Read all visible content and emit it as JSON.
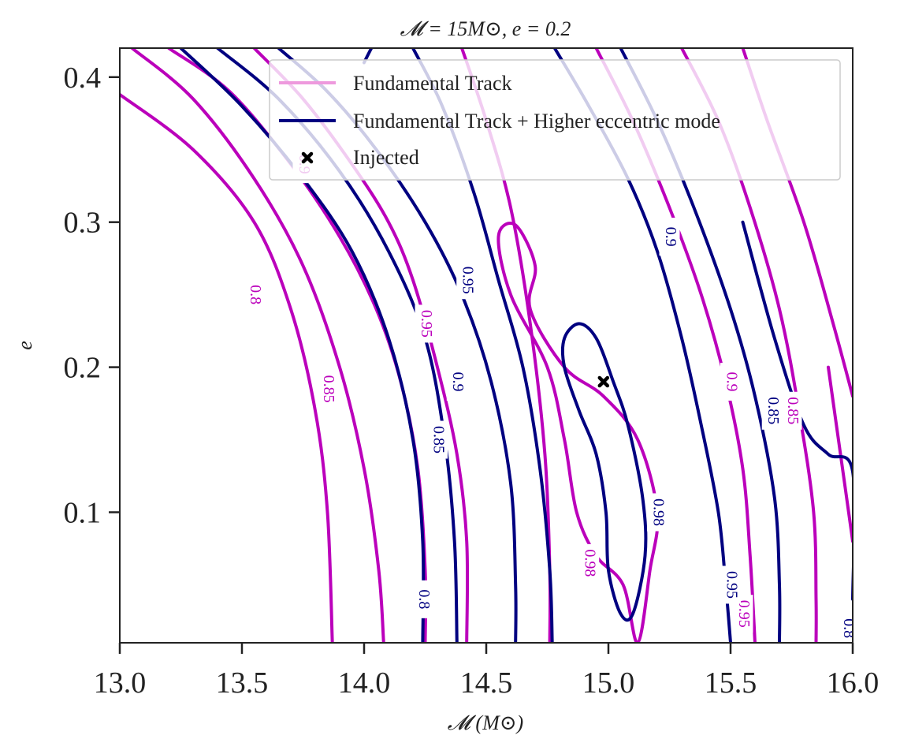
{
  "chart_data": {
    "type": "contour",
    "title": "𝓜 = 15M⊙, e = 0.2",
    "xlabel": "𝓜 (M⊙)",
    "ylabel": "e",
    "xlim": [
      13.0,
      16.0
    ],
    "ylim": [
      0.01,
      0.42
    ],
    "xticks": [
      13.0,
      13.5,
      14.0,
      14.5,
      15.0,
      15.5,
      16.0
    ],
    "xtick_labels": [
      "13.0",
      "13.5",
      "14.0",
      "14.5",
      "15.0",
      "15.5",
      "16.0"
    ],
    "yticks": [
      0.1,
      0.2,
      0.3,
      0.4
    ],
    "ytick_labels": [
      "0.1",
      "0.2",
      "0.3",
      "0.4"
    ],
    "legend_position": "top-right",
    "legend": [
      {
        "label": "Fundamental Track",
        "color": "#ee99dd"
      },
      {
        "label": "Fundamental Track + Higher eccentric mode",
        "color": "#000080"
      },
      {
        "label": "Injected",
        "marker": "x-icon",
        "color": "#000000"
      }
    ],
    "colors": {
      "fundamental": "#bb00bb",
      "higher_mode": "#000080",
      "injected": "#000000"
    },
    "injected_point": {
      "x": 14.98,
      "y": 0.19
    },
    "series": [
      {
        "name": "Fundamental Track",
        "color_key": "fundamental",
        "contours": [
          {
            "level": 0.8,
            "points": [
              [
                13.0,
                0.388
              ],
              [
                13.3,
                0.35
              ],
              [
                13.55,
                0.3
              ],
              [
                13.7,
                0.24
              ],
              [
                13.8,
                0.17
              ],
              [
                13.85,
                0.1
              ],
              [
                13.87,
                0.01
              ]
            ]
          },
          {
            "level": 0.85,
            "points": [
              [
                13.05,
                0.42
              ],
              [
                13.3,
                0.385
              ],
              [
                13.55,
                0.33
              ],
              [
                13.75,
                0.27
              ],
              [
                13.9,
                0.2
              ],
              [
                14.0,
                0.13
              ],
              [
                14.06,
                0.06
              ],
              [
                14.08,
                0.01
              ]
            ]
          },
          {
            "level": 0.9,
            "points": [
              [
                13.2,
                0.42
              ],
              [
                13.45,
                0.39
              ],
              [
                13.7,
                0.34
              ],
              [
                13.9,
                0.29
              ],
              [
                14.05,
                0.24
              ],
              [
                14.15,
                0.19
              ],
              [
                14.22,
                0.13
              ],
              [
                14.25,
                0.06
              ],
              [
                14.25,
                0.01
              ]
            ]
          },
          {
            "level": 0.95,
            "points": [
              [
                13.55,
                0.42
              ],
              [
                13.75,
                0.385
              ],
              [
                13.95,
                0.34
              ],
              [
                14.1,
                0.3
              ],
              [
                14.2,
                0.26
              ],
              [
                14.3,
                0.2
              ],
              [
                14.38,
                0.14
              ],
              [
                14.42,
                0.08
              ],
              [
                14.42,
                0.01
              ]
            ]
          },
          {
            "level": 0.95,
            "points": [
              [
                14.4,
                0.42
              ],
              [
                14.5,
                0.37
              ],
              [
                14.6,
                0.31
              ],
              [
                14.68,
                0.23
              ],
              [
                14.74,
                0.14
              ],
              [
                14.76,
                0.06
              ],
              [
                14.76,
                0.01
              ]
            ]
          },
          {
            "level": 0.98,
            "closed": true,
            "points": [
              [
                14.55,
                0.29
              ],
              [
                14.62,
                0.298
              ],
              [
                14.7,
                0.27
              ],
              [
                14.68,
                0.24
              ],
              [
                14.82,
                0.2
              ],
              [
                14.98,
                0.18
              ],
              [
                15.12,
                0.15
              ],
              [
                15.2,
                0.1
              ],
              [
                15.17,
                0.06
              ],
              [
                15.12,
                0.01
              ],
              [
                15.06,
                0.05
              ],
              [
                14.95,
                0.07
              ],
              [
                14.87,
                0.1
              ],
              [
                14.82,
                0.15
              ],
              [
                14.75,
                0.2
              ],
              [
                14.6,
                0.25
              ]
            ]
          },
          {
            "level": 0.9,
            "points": [
              [
                14.95,
                0.42
              ],
              [
                15.1,
                0.37
              ],
              [
                15.25,
                0.31
              ],
              [
                15.38,
                0.25
              ],
              [
                15.48,
                0.19
              ],
              [
                15.55,
                0.13
              ],
              [
                15.58,
                0.07
              ],
              [
                15.6,
                0.01
              ]
            ]
          },
          {
            "level": 0.85,
            "points": [
              [
                15.3,
                0.42
              ],
              [
                15.45,
                0.37
              ],
              [
                15.58,
                0.31
              ],
              [
                15.7,
                0.24
              ],
              [
                15.78,
                0.17
              ],
              [
                15.84,
                0.1
              ],
              [
                15.85,
                0.04
              ],
              [
                15.85,
                0.01
              ]
            ]
          },
          {
            "level": 0.8,
            "points": [
              [
                15.55,
                0.42
              ],
              [
                15.65,
                0.37
              ],
              [
                15.8,
                0.3
              ],
              [
                15.92,
                0.23
              ],
              [
                16.0,
                0.18
              ]
            ]
          },
          {
            "level": 0.8,
            "points": [
              [
                15.9,
                0.2
              ],
              [
                15.95,
                0.14
              ],
              [
                16.0,
                0.08
              ]
            ]
          }
        ]
      },
      {
        "name": "Fundamental Track + Higher eccentric mode",
        "color_key": "higher_mode",
        "contours": [
          {
            "level": 0.8,
            "points": [
              [
                13.25,
                0.42
              ],
              [
                13.5,
                0.38
              ],
              [
                13.75,
                0.33
              ],
              [
                13.95,
                0.28
              ],
              [
                14.1,
                0.22
              ],
              [
                14.2,
                0.15
              ],
              [
                14.24,
                0.08
              ],
              [
                14.24,
                0.01
              ]
            ]
          },
          {
            "level": 0.85,
            "points": [
              [
                13.4,
                0.42
              ],
              [
                13.65,
                0.385
              ],
              [
                13.9,
                0.335
              ],
              [
                14.1,
                0.28
              ],
              [
                14.25,
                0.22
              ],
              [
                14.33,
                0.15
              ],
              [
                14.37,
                0.08
              ],
              [
                14.38,
                0.01
              ]
            ]
          },
          {
            "level": 0.9,
            "points": [
              [
                13.65,
                0.42
              ],
              [
                13.85,
                0.39
              ],
              [
                14.05,
                0.35
              ],
              [
                14.25,
                0.3
              ],
              [
                14.4,
                0.25
              ],
              [
                14.52,
                0.19
              ],
              [
                14.6,
                0.12
              ],
              [
                14.62,
                0.05
              ],
              [
                14.62,
                0.01
              ]
            ]
          },
          {
            "level": 0.95,
            "points": [
              [
                14.2,
                0.42
              ],
              [
                14.32,
                0.38
              ],
              [
                14.45,
                0.32
              ],
              [
                14.55,
                0.26
              ],
              [
                14.65,
                0.2
              ],
              [
                14.72,
                0.13
              ],
              [
                14.76,
                0.06
              ],
              [
                14.77,
                0.01
              ]
            ]
          },
          {
            "level": 0.98,
            "closed": true,
            "points": [
              [
                14.82,
                0.22
              ],
              [
                14.88,
                0.23
              ],
              [
                14.95,
                0.22
              ],
              [
                15.02,
                0.19
              ],
              [
                15.08,
                0.16
              ],
              [
                15.14,
                0.11
              ],
              [
                15.15,
                0.07
              ],
              [
                15.1,
                0.03
              ],
              [
                15.05,
                0.03
              ],
              [
                15.0,
                0.06
              ],
              [
                14.99,
                0.1
              ],
              [
                14.95,
                0.14
              ],
              [
                14.88,
                0.17
              ],
              [
                14.82,
                0.2
              ]
            ]
          },
          {
            "level": 0.9,
            "points": [
              [
                14.78,
                0.42
              ],
              [
                14.92,
                0.38
              ],
              [
                15.08,
                0.33
              ],
              [
                15.2,
                0.28
              ],
              [
                15.3,
                0.22
              ],
              [
                15.38,
                0.16
              ],
              [
                15.45,
                0.1
              ],
              [
                15.48,
                0.05
              ],
              [
                15.5,
                0.01
              ]
            ]
          },
          {
            "level": 0.85,
            "points": [
              [
                15.05,
                0.42
              ],
              [
                15.2,
                0.37
              ],
              [
                15.35,
                0.31
              ],
              [
                15.5,
                0.24
              ],
              [
                15.6,
                0.18
              ],
              [
                15.68,
                0.11
              ],
              [
                15.7,
                0.05
              ],
              [
                15.7,
                0.01
              ]
            ]
          },
          {
            "level": 0.85,
            "points": [
              [
                15.55,
                0.3
              ],
              [
                15.68,
                0.22
              ],
              [
                15.8,
                0.16
              ],
              [
                15.9,
                0.14
              ],
              [
                16.0,
                0.128
              ],
              [
                16.0,
                0.04
              ]
            ]
          },
          {
            "level": 0.9,
            "points": [
              [
                14.03,
                0.42
              ],
              [
                14.0,
                0.41
              ]
            ]
          }
        ]
      }
    ],
    "contour_labels": [
      {
        "text": "0.8",
        "x": 13.55,
        "y": 0.25,
        "color_key": "fundamental"
      },
      {
        "text": "0.85",
        "x": 13.85,
        "y": 0.185,
        "color_key": "fundamental"
      },
      {
        "text": "0.9",
        "x": 13.75,
        "y": 0.34,
        "color_key": "fundamental"
      },
      {
        "text": "0.95",
        "x": 14.25,
        "y": 0.23,
        "color_key": "fundamental"
      },
      {
        "text": "0.98",
        "x": 14.92,
        "y": 0.065,
        "color_key": "fundamental"
      },
      {
        "text": "0.9",
        "x": 15.5,
        "y": 0.19,
        "color_key": "fundamental"
      },
      {
        "text": "0.85",
        "x": 15.75,
        "y": 0.17,
        "color_key": "fundamental"
      },
      {
        "text": "0.95",
        "x": 15.55,
        "y": 0.03,
        "color_key": "fundamental"
      },
      {
        "text": "0.9",
        "x": 14.38,
        "y": 0.19,
        "color_key": "higher_mode"
      },
      {
        "text": "0.85",
        "x": 14.3,
        "y": 0.15,
        "color_key": "higher_mode"
      },
      {
        "text": "0.95",
        "x": 14.42,
        "y": 0.26,
        "color_key": "higher_mode"
      },
      {
        "text": "0.8",
        "x": 14.24,
        "y": 0.04,
        "color_key": "higher_mode"
      },
      {
        "text": "0.98",
        "x": 15.2,
        "y": 0.1,
        "color_key": "higher_mode"
      },
      {
        "text": "0.9",
        "x": 15.25,
        "y": 0.29,
        "color_key": "higher_mode"
      },
      {
        "text": "0.85",
        "x": 15.67,
        "y": 0.17,
        "color_key": "higher_mode"
      },
      {
        "text": "0.95",
        "x": 15.5,
        "y": 0.05,
        "color_key": "higher_mode"
      },
      {
        "text": "0.8",
        "x": 15.98,
        "y": 0.02,
        "color_key": "higher_mode"
      }
    ]
  }
}
